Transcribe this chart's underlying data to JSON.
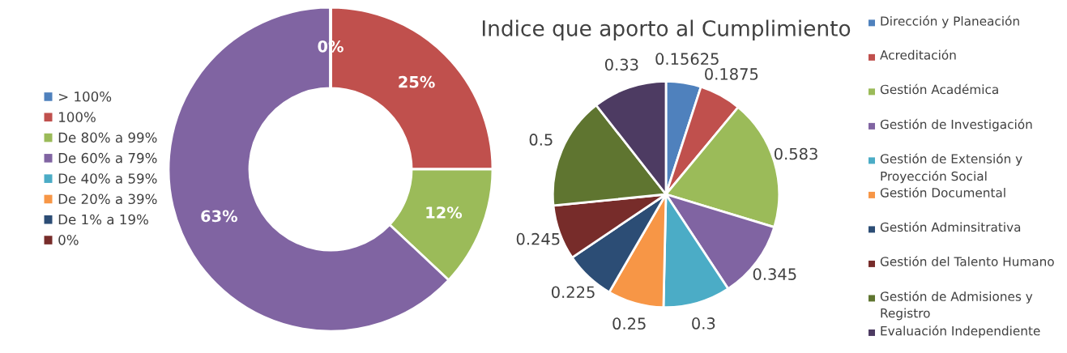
{
  "chart_data": [
    {
      "type": "donut",
      "categories": [
        "> 100%",
        "100%",
        "De 80% a 99%",
        "De 60% a 79%",
        "De 40% a 59%",
        "De 20% a 39%",
        "De 1% a 19%",
        "0%"
      ],
      "values": [
        0,
        25,
        12,
        63,
        0,
        0,
        0,
        0
      ],
      "value_labels": [
        "0%",
        "25%",
        "12%",
        "63%",
        null,
        null,
        null,
        null
      ],
      "colors": [
        "#4f81bd",
        "#c0504d",
        "#9bbb59",
        "#8064a2",
        "#4bacc6",
        "#f79646",
        "#2c4d75",
        "#772c2a"
      ],
      "legend": "left"
    },
    {
      "type": "pie",
      "title": "Indice que aporto al Cumplimiento",
      "categories": [
        "Dirección y Planeación",
        "Acreditación",
        "Gestión Académica",
        "Gestión de Investigación",
        "Gestión de Extensión y Proyección Social",
        "Gestión Documental",
        "Gestión Adminsitrativa",
        "Gestión del Talento Humano",
        "Gestión de Admisiones y Registro",
        "Evaluación Independiente"
      ],
      "values": [
        0.15625,
        0.1875,
        0.583,
        0.345,
        0.3,
        0.25,
        0.225,
        0.245,
        0.5,
        0.33
      ],
      "colors": [
        "#4f81bd",
        "#c0504d",
        "#9bbb59",
        "#8064a2",
        "#4bacc6",
        "#f79646",
        "#2c4d75",
        "#772c2a",
        "#5f7530",
        "#4d3b62"
      ],
      "data_labels": true,
      "legend": "right"
    }
  ]
}
